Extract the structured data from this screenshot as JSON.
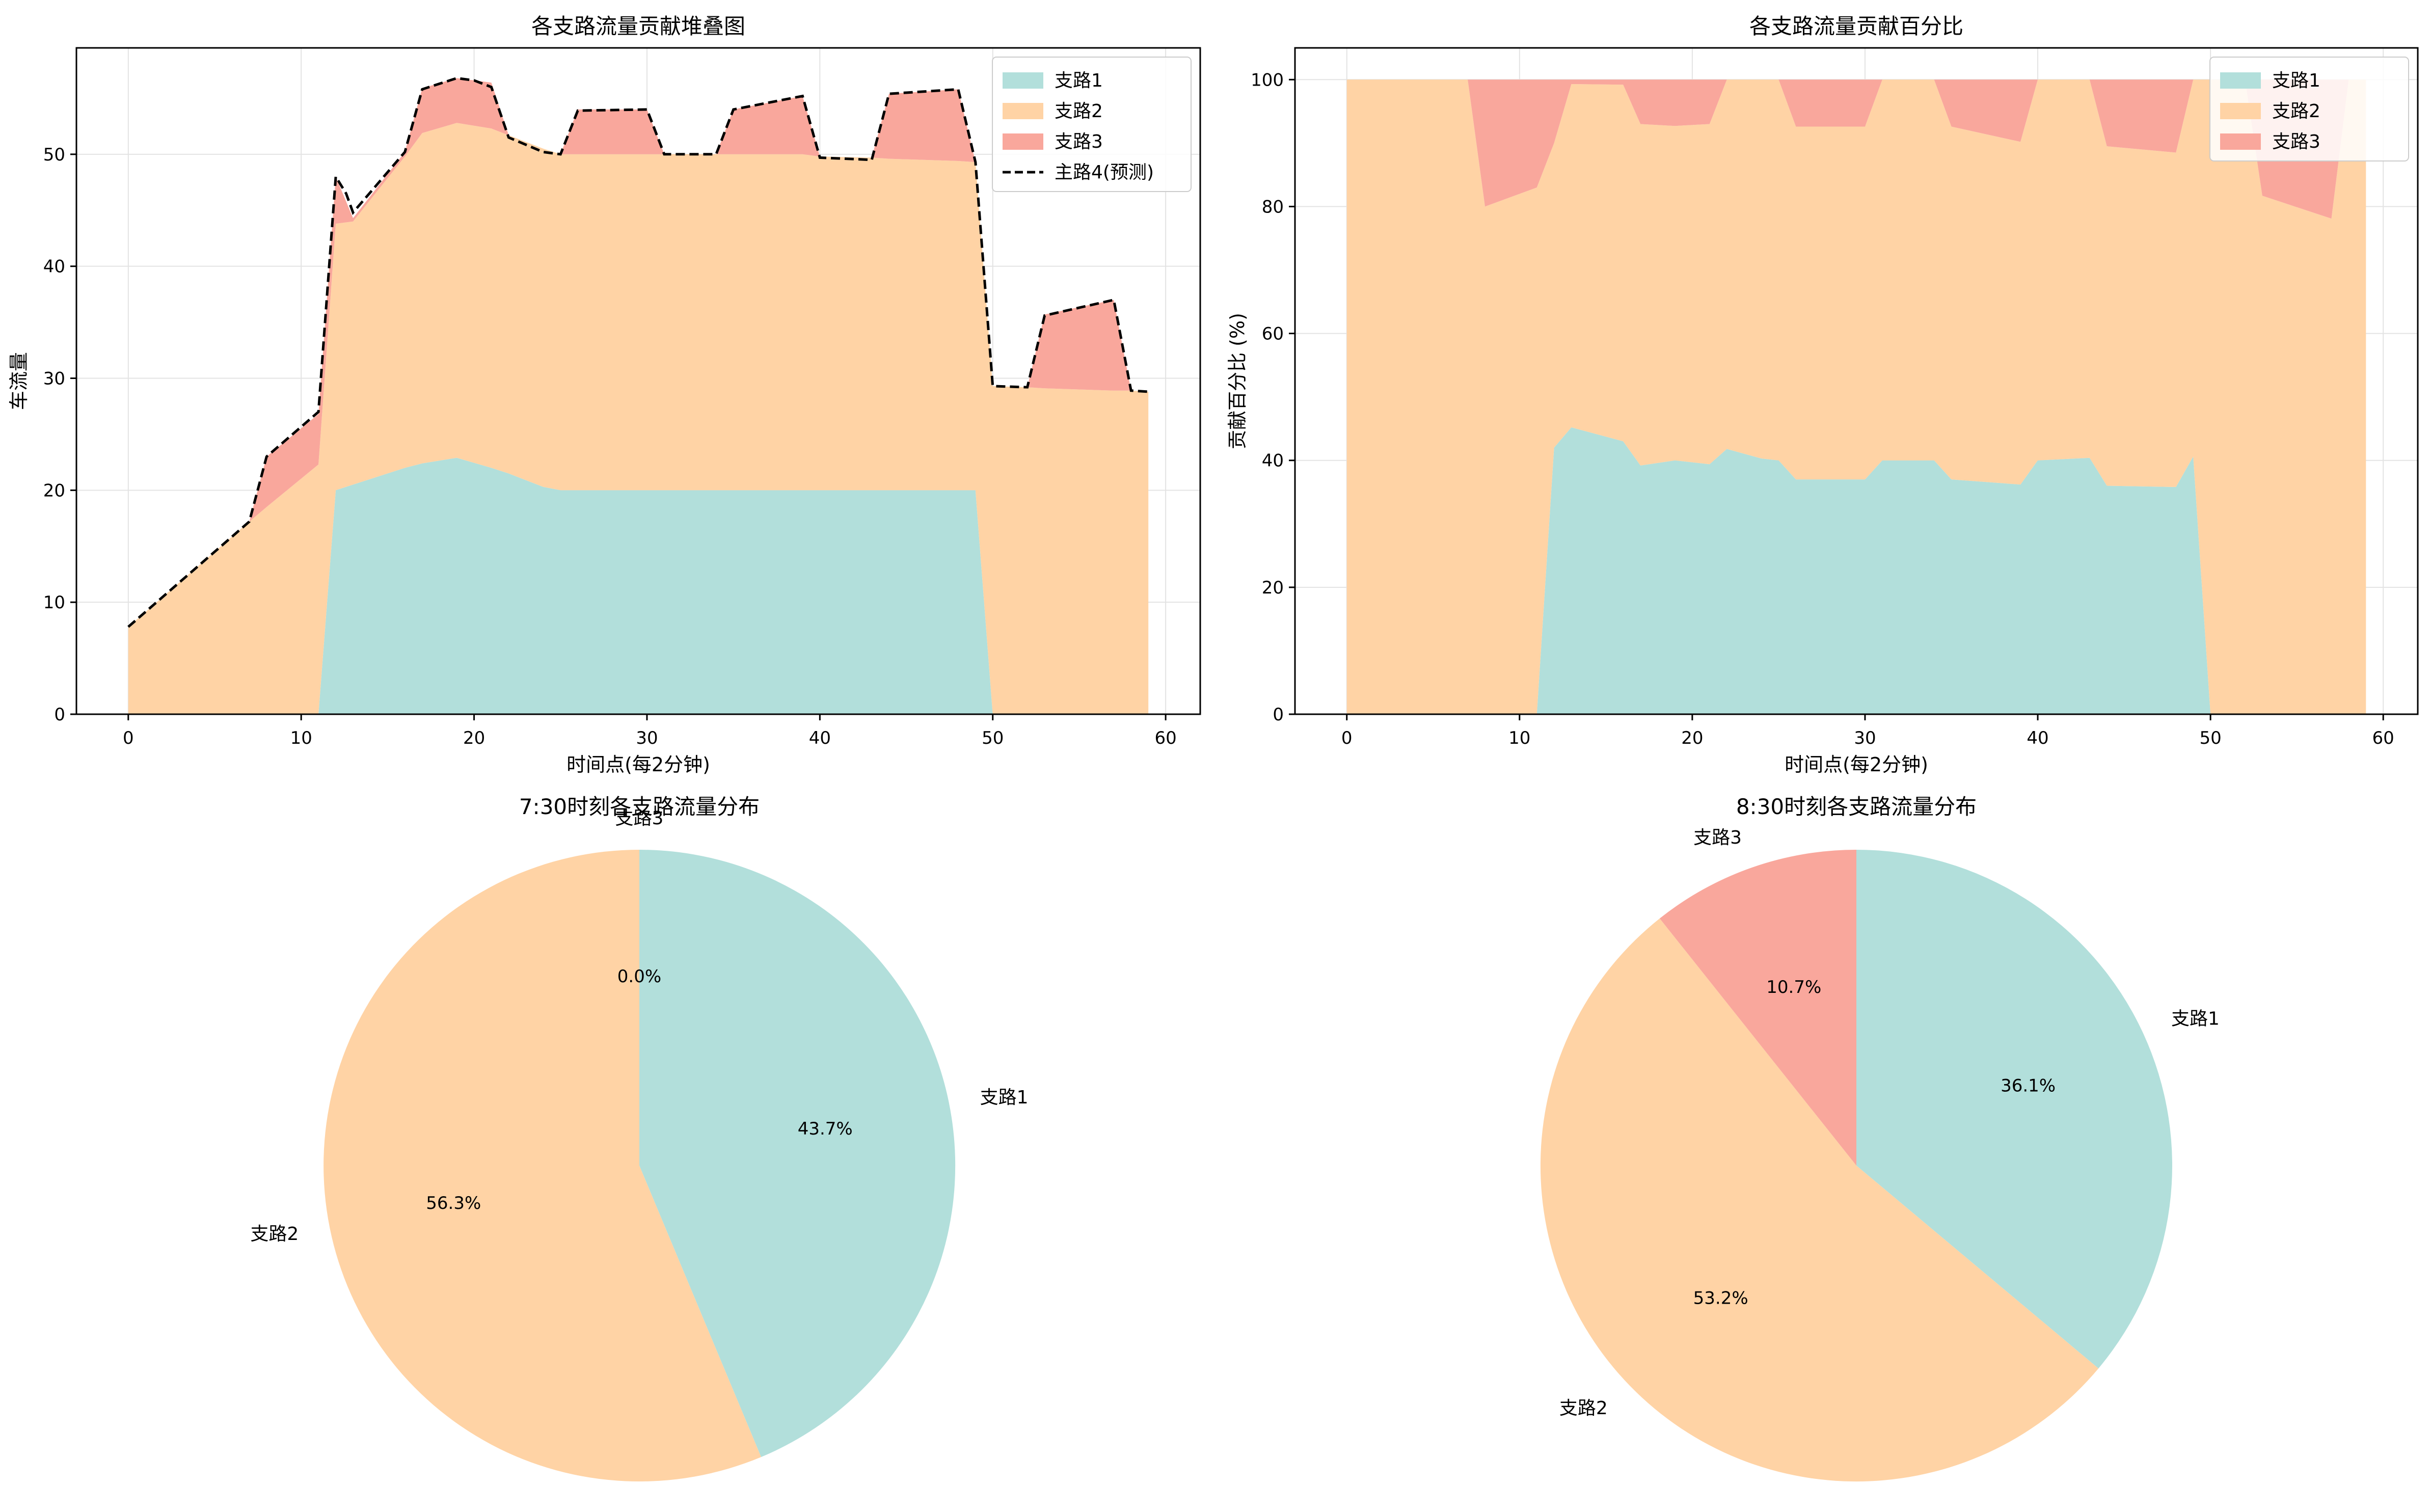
{
  "colors": {
    "branch1": "#b2dfdb",
    "branch2": "#ffd3a5",
    "branch3": "#f9a79c",
    "prediction": "#000000",
    "grid": "#e3e3e3",
    "axis": "#000000"
  },
  "chart_data": [
    {
      "type": "area",
      "stacked": true,
      "title": "各支路流量贡献堆叠图",
      "xlabel": "时间点(每2分钟)",
      "ylabel": "车流量",
      "xlim": [
        -3,
        62
      ],
      "ylim": [
        0,
        59.5
      ],
      "xticks": [
        0,
        10,
        20,
        30,
        40,
        50,
        60
      ],
      "yticks": [
        0,
        10,
        20,
        30,
        40,
        50
      ],
      "grid": true,
      "legend_position": "top-right",
      "x": [
        0,
        7,
        8,
        11,
        12,
        13,
        16,
        17,
        19,
        21,
        22,
        24,
        25,
        26,
        30,
        31,
        34,
        35,
        39,
        40,
        43,
        44,
        48,
        49,
        50,
        52,
        53,
        57,
        58,
        59
      ],
      "series": [
        {
          "name": "支路1",
          "color_key": "branch1",
          "values": [
            0,
            0,
            0,
            0,
            20,
            20.5,
            22,
            22.4,
            22.9,
            22,
            21.5,
            20.3,
            20,
            20,
            20,
            20,
            20,
            20,
            20,
            20,
            20,
            20,
            20,
            20,
            0,
            0,
            0,
            0,
            0,
            0
          ]
        },
        {
          "name": "支路2",
          "color_key": "branch2",
          "values": [
            7.8,
            17.2,
            18.5,
            22.3,
            23.8,
            23.5,
            27.8,
            29.5,
            29.9,
            30.3,
            30.2,
            30.2,
            30,
            30,
            30,
            30,
            30,
            30,
            30,
            29.8,
            29.7,
            29.6,
            29.4,
            29.3,
            29.3,
            29.2,
            29.1,
            28.9,
            28.9,
            28.8
          ]
        },
        {
          "name": "支路3",
          "color_key": "branch3",
          "values": [
            0,
            0,
            4.5,
            4.5,
            4.2,
            0.3,
            0.4,
            4,
            4,
            4.1,
            0,
            0,
            0,
            4,
            4,
            0,
            0,
            4,
            5.2,
            0,
            0,
            5.8,
            6.4,
            0,
            0,
            0,
            6.6,
            8.1,
            0,
            0
          ]
        }
      ],
      "overlay_line": {
        "name": "主路4(预测)",
        "color_key": "prediction",
        "style": "dashed",
        "x": [
          0,
          7,
          8,
          11,
          12,
          12.6,
          13,
          16,
          17,
          19,
          20,
          21,
          22,
          24,
          25,
          26,
          30,
          31,
          34,
          35,
          39,
          40,
          43,
          44,
          48,
          49,
          50,
          52,
          53,
          57,
          58,
          59
        ],
        "values": [
          7.8,
          17.2,
          23,
          27,
          48,
          46.5,
          44.8,
          50.2,
          55.8,
          56.8,
          56.6,
          56,
          51.5,
          50.2,
          50,
          53.9,
          54,
          50,
          50,
          54,
          55.2,
          49.7,
          49.5,
          55.4,
          55.8,
          49.3,
          29.3,
          29.2,
          35.6,
          37,
          28.9,
          28.8
        ]
      }
    },
    {
      "type": "area",
      "stacked": true,
      "title": "各支路流量贡献百分比",
      "xlabel": "时间点(每2分钟)",
      "ylabel": "贡献百分比 (%)",
      "xlim": [
        -3,
        62
      ],
      "ylim": [
        0,
        105
      ],
      "xticks": [
        0,
        10,
        20,
        30,
        40,
        50,
        60
      ],
      "yticks": [
        0,
        20,
        40,
        60,
        80,
        100
      ],
      "grid": true,
      "legend_position": "top-right",
      "x": [
        0,
        7,
        8,
        11,
        12,
        13,
        16,
        17,
        19,
        21,
        22,
        24,
        25,
        26,
        30,
        31,
        34,
        35,
        39,
        40,
        43,
        44,
        48,
        49,
        50,
        52,
        53,
        57,
        58,
        59
      ],
      "series": [
        {
          "name": "支路1",
          "color_key": "branch1",
          "values": [
            0,
            0,
            0,
            0,
            42,
            45.2,
            43,
            39.2,
            40,
            39.4,
            41.8,
            40.3,
            40,
            37,
            37,
            40,
            40,
            37,
            36.2,
            40,
            40.4,
            36,
            35.8,
            40.6,
            0,
            0,
            0,
            0,
            0,
            0
          ]
        },
        {
          "name": "支路2",
          "color_key": "branch2",
          "values": [
            100,
            100,
            80,
            83,
            48,
            54.1,
            56.2,
            53.8,
            52.7,
            53.6,
            58.2,
            59.7,
            60,
            55.6,
            55.6,
            60,
            60,
            55.6,
            54,
            60,
            59.6,
            53.5,
            52.7,
            59.4,
            100,
            100,
            81.7,
            78.1,
            100,
            100
          ]
        },
        {
          "name": "支路3",
          "color_key": "branch3",
          "values": [
            0,
            0,
            20,
            17,
            10,
            0.7,
            0.8,
            7,
            7.3,
            7,
            0,
            0,
            0,
            7.4,
            7.4,
            0,
            0,
            7.4,
            9.8,
            0,
            0,
            10.5,
            11.5,
            0,
            0,
            0,
            18.3,
            21.9,
            0,
            0
          ]
        }
      ]
    },
    {
      "type": "pie",
      "title": "7:30时刻各支路流量分布",
      "start_angle": 90,
      "direction": "clockwise",
      "slices": [
        {
          "label": "支路1",
          "value": 43.7,
          "pct_label": "43.7%",
          "color_key": "branch1"
        },
        {
          "label": "支路2",
          "value": 56.3,
          "pct_label": "56.3%",
          "color_key": "branch2"
        },
        {
          "label": "支路3",
          "value": 0.0,
          "pct_label": "0.0%",
          "color_key": "branch3"
        }
      ]
    },
    {
      "type": "pie",
      "title": "8:30时刻各支路流量分布",
      "start_angle": 90,
      "direction": "clockwise",
      "slices": [
        {
          "label": "支路1",
          "value": 36.1,
          "pct_label": "36.1%",
          "color_key": "branch1"
        },
        {
          "label": "支路2",
          "value": 53.2,
          "pct_label": "53.2%",
          "color_key": "branch2"
        },
        {
          "label": "支路3",
          "value": 10.7,
          "pct_label": "10.7%",
          "color_key": "branch3"
        }
      ]
    }
  ]
}
